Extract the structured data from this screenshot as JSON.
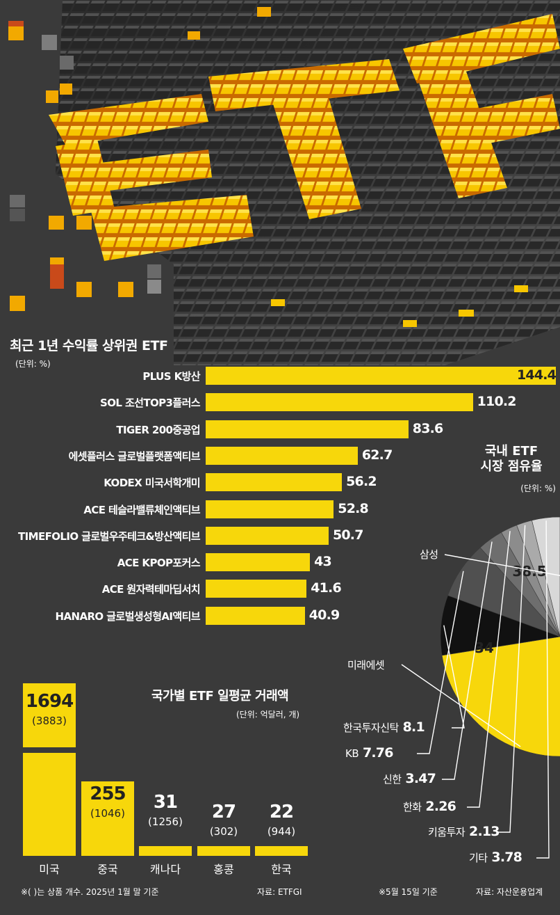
{
  "bar_chart": {
    "title": "최근 1년 수익률 상위권 ETF",
    "unit": "(단위: %)"
  },
  "pie_chart": {
    "title_line1": "국내 ETF",
    "title_line2": "시장 점유율",
    "unit": "(단위: %)",
    "note": "※5월 15일 기준",
    "source": "자료: 자산운용업계"
  },
  "country_chart": {
    "title": "국가별 ETF 일평균 거래액",
    "unit": "(단위: 억달러, 개)",
    "note": "※(  )는 상품 개수. 2025년 1월 말 기준",
    "source": "자료: ETFGI"
  },
  "colors": {
    "bar": "#f7d70b",
    "pie_samsung": "#f2a900",
    "pie_mirae": "#f7d70b",
    "pie_hankook": "#111111",
    "background": "#3a3a3a"
  },
  "chart_data": [
    {
      "type": "bar",
      "orientation": "horizontal",
      "title": "최근 1년 수익률 상위권 ETF",
      "unit": "%",
      "categories": [
        "PLUS K방산",
        "SOL 조선TOP3플러스",
        "TIGER 200중공업",
        "에셋플러스 글로벌플랫폼액티브",
        "KODEX 미국서학개미",
        "ACE 테슬라밸류체인액티브",
        "TIMEFOLIO 글로벌우주테크&방산액티브",
        "ACE KPOP포커스",
        "ACE 원자력테마딥서치",
        "HANARO 글로벌생성형AI액티브"
      ],
      "values": [
        144.4,
        110.2,
        83.6,
        62.7,
        56.2,
        52.8,
        50.7,
        43,
        41.6,
        40.9
      ],
      "value_labels": [
        "144.4",
        "110.2",
        "83.6",
        "62.7",
        "56.2",
        "52.8",
        "50.7",
        "43",
        "41.6",
        "40.9"
      ]
    },
    {
      "type": "pie",
      "title": "국내 ETF 시장 점유율",
      "unit": "%",
      "labels": [
        "삼성",
        "미래에셋",
        "한국투자신탁",
        "KB",
        "신한",
        "한화",
        "키움투자",
        "기타"
      ],
      "values": [
        38.5,
        34,
        8.1,
        7.76,
        3.47,
        2.26,
        2.13,
        3.78
      ],
      "value_labels": [
        "38.5",
        "34",
        "8.1",
        "7.76",
        "3.47",
        "2.26",
        "2.13",
        "3.78"
      ]
    },
    {
      "type": "bar",
      "orientation": "vertical",
      "title": "국가별 ETF 일평균 거래액",
      "unit": "억달러, 개",
      "categories": [
        "미국",
        "중국",
        "캐나다",
        "홍콩",
        "한국"
      ],
      "values": [
        1694,
        255,
        31,
        27,
        22
      ],
      "product_counts": [
        "(3883)",
        "(1046)",
        "(1256)",
        "(302)",
        "(944)"
      ],
      "value_labels": [
        "1694",
        "255",
        "31",
        "27",
        "22"
      ],
      "axis_break": true
    }
  ]
}
